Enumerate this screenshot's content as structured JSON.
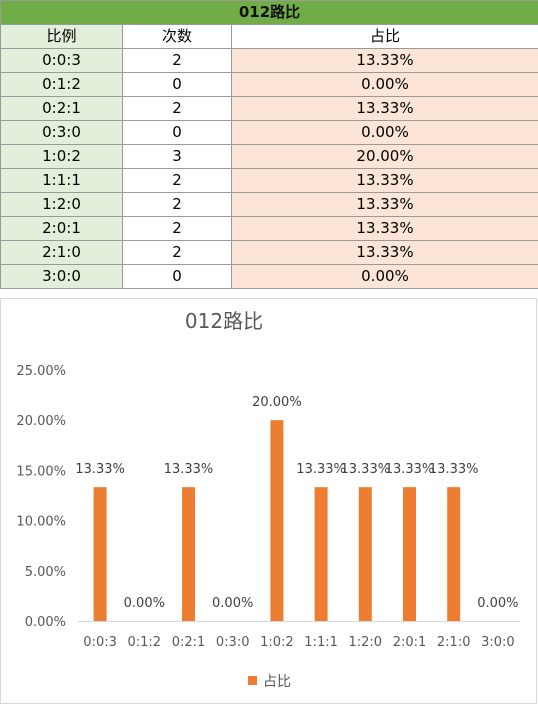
{
  "table": {
    "title": "012路比",
    "headers": [
      "比例",
      "次数",
      "占比"
    ],
    "rows": [
      {
        "ratio": "0:0:3",
        "count": "2",
        "pct": "13.33%"
      },
      {
        "ratio": "0:1:2",
        "count": "0",
        "pct": "0.00%"
      },
      {
        "ratio": "0:2:1",
        "count": "2",
        "pct": "13.33%"
      },
      {
        "ratio": "0:3:0",
        "count": "0",
        "pct": "0.00%"
      },
      {
        "ratio": "1:0:2",
        "count": "3",
        "pct": "20.00%"
      },
      {
        "ratio": "1:1:1",
        "count": "2",
        "pct": "13.33%"
      },
      {
        "ratio": "1:2:0",
        "count": "2",
        "pct": "13.33%"
      },
      {
        "ratio": "2:0:1",
        "count": "2",
        "pct": "13.33%"
      },
      {
        "ratio": "2:1:0",
        "count": "2",
        "pct": "13.33%"
      },
      {
        "ratio": "3:0:0",
        "count": "0",
        "pct": "0.00%"
      }
    ]
  },
  "chart_data": {
    "type": "bar",
    "title": "012路比",
    "categories": [
      "0:0:3",
      "0:1:2",
      "0:2:1",
      "0:3:0",
      "1:0:2",
      "1:1:1",
      "1:2:0",
      "2:0:1",
      "2:1:0",
      "3:0:0"
    ],
    "series": [
      {
        "name": "占比",
        "values": [
          13.33,
          0.0,
          13.33,
          0.0,
          20.0,
          13.33,
          13.33,
          13.33,
          13.33,
          0.0
        ],
        "color": "#ed7d31"
      }
    ],
    "data_labels": [
      "13.33%",
      "0.00%",
      "13.33%",
      "0.00%",
      "20.00%",
      "13.33%",
      "13.33%",
      "13.33%",
      "13.33%",
      "0.00%"
    ],
    "yticks": [
      "0.00%",
      "5.00%",
      "10.00%",
      "15.00%",
      "20.00%",
      "25.00%"
    ],
    "ylim": [
      0,
      25
    ],
    "grid": false,
    "legend": "bottom",
    "xlabel": "",
    "ylabel": ""
  }
}
